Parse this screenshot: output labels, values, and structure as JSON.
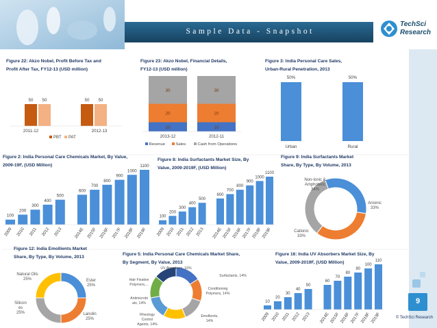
{
  "header": {
    "title": "S a m p l e   D a t a   -   S n a p s h o t",
    "logo_line1": "TechSci",
    "logo_line2": "Research",
    "colors": {
      "band": "#1b4d6e",
      "accent": "#2e8fd0",
      "sidebar": "#dce9f2"
    }
  },
  "footer": {
    "page_number": "9",
    "copyright": "© TechSci Research"
  },
  "chart_data": [
    {
      "id": "fig22",
      "type": "bar",
      "caption": [
        "Figure 22: Akzo Nobel, Profit Before Tax and",
        "Profit After Tax, FY12-13 (USD million)"
      ],
      "categories": [
        "2011-12",
        "2012-13"
      ],
      "series": [
        {
          "name": "PBT",
          "values": [
            50,
            50
          ],
          "color": "#c55a11"
        },
        {
          "name": "PAT",
          "values": [
            50,
            50
          ],
          "color": "#f4b183"
        }
      ],
      "legend_position": "bottom"
    },
    {
      "id": "fig23",
      "type": "bar",
      "stacked": true,
      "caption": [
        "Figure 23: Akzo Nobel, Financial Details,",
        "FY12-13 (USD million)"
      ],
      "categories": [
        "2013-12",
        "2012-11"
      ],
      "series": [
        {
          "name": "Revenue",
          "values": [
            10,
            10
          ],
          "color": "#4472c4"
        },
        {
          "name": "Sales",
          "values": [
            20,
            20
          ],
          "color": "#ed7d31"
        },
        {
          "name": "Cash from Operations",
          "values": [
            30,
            30
          ],
          "color": "#a5a5a5"
        }
      ],
      "legend_position": "bottom"
    },
    {
      "id": "fig3",
      "type": "bar",
      "caption": [
        "Figure 3: India Personal Care Sales,",
        "Urban-Rural Penetration, 2013"
      ],
      "categories": [
        "Urban",
        "Rural"
      ],
      "values": [
        50,
        50
      ],
      "labels": [
        "50%",
        "50%"
      ],
      "color": "#4a8fd8"
    },
    {
      "id": "fig2",
      "type": "bar",
      "caption": [
        "Figure 2: India Personal Care Chemicals Market, By Value,",
        "2009-19F, (USD Million)"
      ],
      "categories": [
        "2009",
        "2010",
        "2011",
        "2012",
        "2013",
        "2014E",
        "2015F",
        "2016F",
        "2017F",
        "2018F",
        "2019F"
      ],
      "values": [
        100,
        200,
        300,
        400,
        500,
        600,
        700,
        800,
        900,
        1000,
        1100
      ],
      "color": "#4a8fd8"
    },
    {
      "id": "fig8",
      "type": "bar",
      "caption": [
        "Figure 8: India Surfactants Market Size, By",
        "Value, 2009-2019F, (USD Million)"
      ],
      "categories": [
        "2009",
        "2010",
        "2011",
        "2012",
        "2013",
        "2014E",
        "2015F",
        "2016F",
        "2017F",
        "2018F",
        "2019F"
      ],
      "values": [
        100,
        200,
        300,
        400,
        500,
        600,
        700,
        800,
        900,
        1000,
        1100
      ],
      "color": "#4a8fd8"
    },
    {
      "id": "fig9",
      "type": "pie",
      "donut": true,
      "caption": [
        "Figure 9: India Surfactants Market",
        "Share, By Type, By Volume, 2013"
      ],
      "slices": [
        {
          "label": [
            "Anionic",
            "33%"
          ],
          "value": 33,
          "color": "#4a8fd8"
        },
        {
          "label": [
            "Cationic",
            "33%"
          ],
          "value": 33,
          "color": "#ed7d31"
        },
        {
          "label": [
            "Non-Ionic &",
            "Amphoteric",
            "34%"
          ],
          "value": 34,
          "color": "#a5a5a5"
        }
      ]
    },
    {
      "id": "fig12",
      "type": "pie",
      "donut": true,
      "caption": [
        "Figure 12: India Emollients Market",
        "Share, By Type, By Volume, 2013"
      ],
      "slices": [
        {
          "label": [
            "Ester",
            "25%"
          ],
          "value": 25,
          "color": "#4a8fd8"
        },
        {
          "label": [
            "Lanolin",
            "25%"
          ],
          "value": 25,
          "color": "#ed7d31"
        },
        {
          "label": [
            "Silicon",
            "es",
            "25%"
          ],
          "value": 25,
          "color": "#a5a5a5"
        },
        {
          "label": [
            "Natural Oils",
            "25%"
          ],
          "value": 25,
          "color": "#ffc000"
        }
      ]
    },
    {
      "id": "fig5",
      "type": "pie",
      "donut": true,
      "caption": [
        "Figure 5: India Personal Care Chemicals Market Share,",
        "By Segment, By Value, 2013"
      ],
      "slices": [
        {
          "label": [
            "UV Absorbers, 16%"
          ],
          "value": 16,
          "color": "#4472c4"
        },
        {
          "label": [
            "Surfactants, 14%"
          ],
          "value": 14,
          "color": "#ed7d31"
        },
        {
          "label": [
            "Conditioning",
            "Polymers, 14%"
          ],
          "value": 14,
          "color": "#a5a5a5"
        },
        {
          "label": [
            "Emollients,",
            "14%"
          ],
          "value": 14,
          "color": "#ffc000"
        },
        {
          "label": [
            "Rheology",
            "Control",
            "Agents, 14%"
          ],
          "value": 14,
          "color": "#5b9bd5"
        },
        {
          "label": [
            "Antimicrobi",
            "als, 14%"
          ],
          "value": 14,
          "color": "#70ad47"
        },
        {
          "label": [
            "Hair Fixative",
            "Polymers,..."
          ],
          "value": 14,
          "color": "#264478"
        }
      ]
    },
    {
      "id": "fig16",
      "type": "bar",
      "caption": [
        "Figure 16: India UV Absorbers Market Size, By",
        "Value, 2009-2019F, (USD Million)"
      ],
      "categories": [
        "2009",
        "2010",
        "2011",
        "2012",
        "2013",
        "2014E",
        "2015F",
        "2016F",
        "2017F",
        "2018F",
        "2019F"
      ],
      "values": [
        10,
        20,
        30,
        40,
        50,
        60,
        70,
        80,
        90,
        100,
        110
      ],
      "color": "#4a8fd8"
    }
  ]
}
